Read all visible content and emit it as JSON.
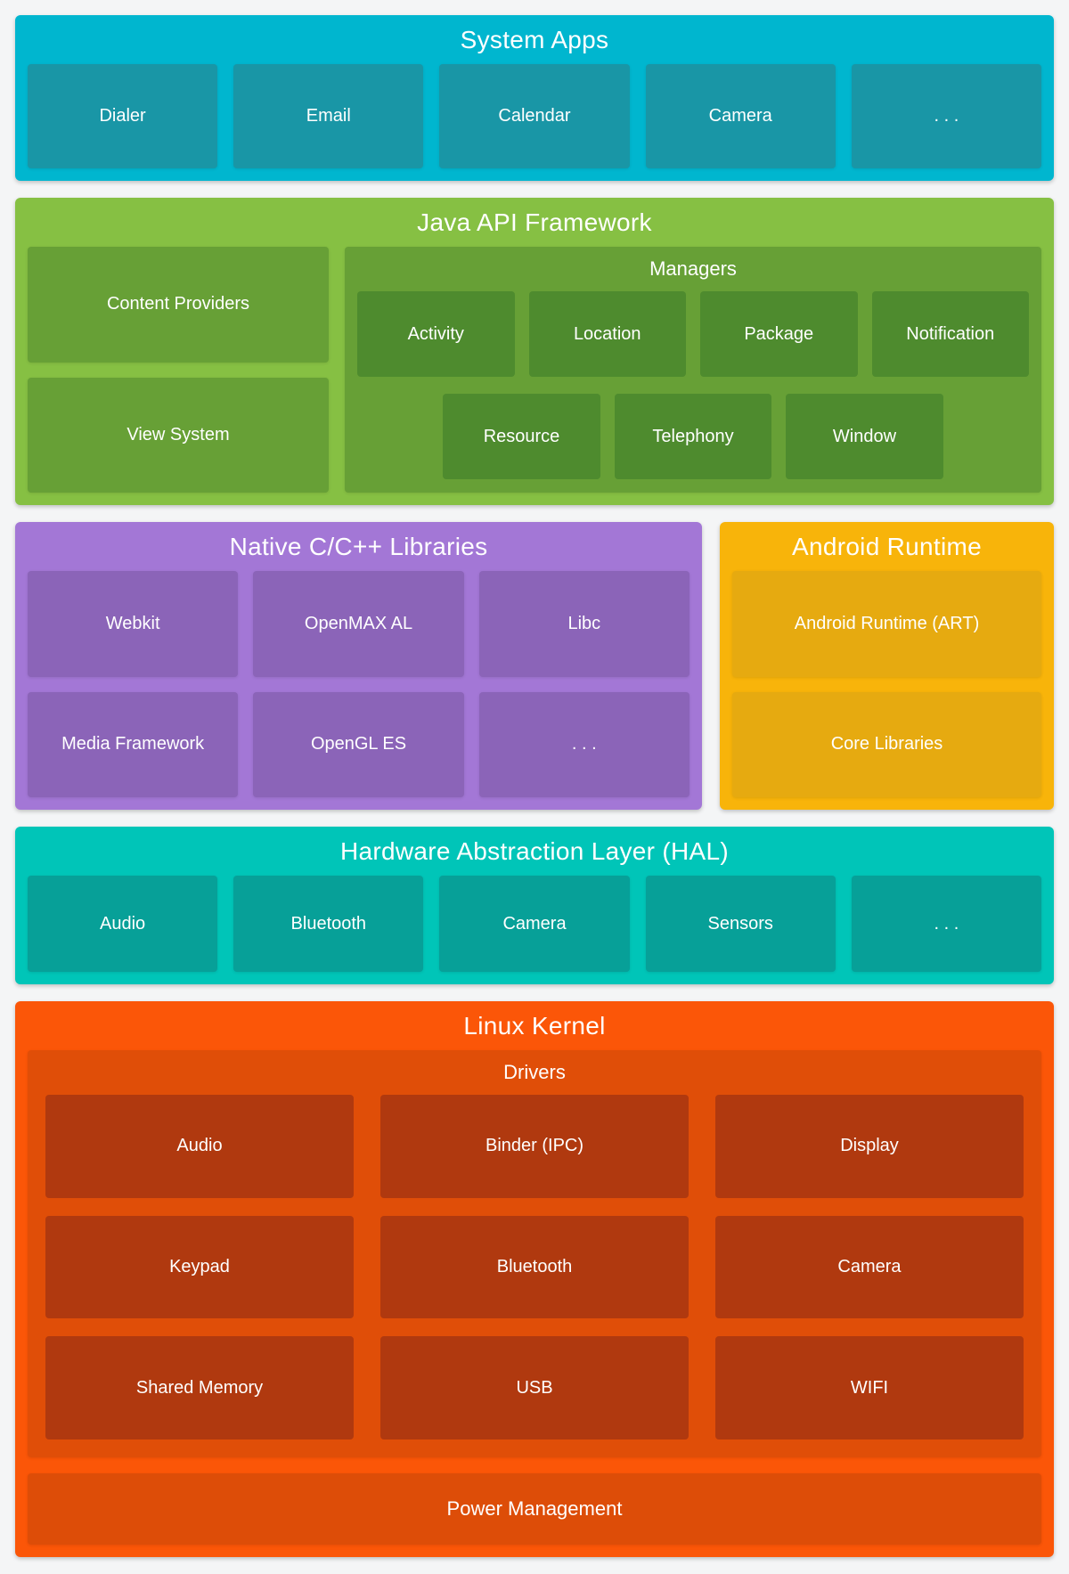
{
  "colors": {
    "background": "#f4f5f6",
    "text": "#ffffff",
    "system_apps_outer": "#00b6cf",
    "system_apps_box": "#1996a6",
    "java_outer": "#86c043",
    "java_mid": "#67a036",
    "java_box": "#4e8b2e",
    "native_outer": "#a377d6",
    "native_box": "#8b64b8",
    "runtime_outer": "#f8b40a",
    "runtime_box": "#e6aa10",
    "hal_outer": "#00c5b8",
    "hal_box": "#07a098",
    "kernel_outer": "#fb5608",
    "kernel_mid": "#e04e08",
    "kernel_box": "#b0390f"
  },
  "system_apps": {
    "title": "System Apps",
    "boxes": [
      "Dialer",
      "Email",
      "Calendar",
      "Camera",
      ". . ."
    ]
  },
  "java_api": {
    "title": "Java API Framework",
    "left_boxes": [
      "Content Providers",
      "View System"
    ],
    "managers": {
      "title": "Managers",
      "row1": [
        "Activity",
        "Location",
        "Package",
        "Notification"
      ],
      "row2": [
        "Resource",
        "Telephony",
        "Window"
      ]
    }
  },
  "native_libs": {
    "title": "Native C/C++ Libraries",
    "row1": [
      "Webkit",
      "OpenMAX AL",
      "Libc"
    ],
    "row2": [
      "Media Framework",
      "OpenGL ES",
      ". . ."
    ]
  },
  "android_runtime": {
    "title": "Android Runtime",
    "boxes": [
      "Android Runtime (ART)",
      "Core Libraries"
    ]
  },
  "hal": {
    "title": "Hardware Abstraction Layer (HAL)",
    "boxes": [
      "Audio",
      "Bluetooth",
      "Camera",
      "Sensors",
      ". . ."
    ]
  },
  "linux_kernel": {
    "title": "Linux Kernel",
    "drivers": {
      "title": "Drivers",
      "row1": [
        "Audio",
        "Binder (IPC)",
        "Display"
      ],
      "row2": [
        "Keypad",
        "Bluetooth",
        "Camera"
      ],
      "row3": [
        "Shared Memory",
        "USB",
        "WIFI"
      ]
    },
    "power_box": "Power Management"
  }
}
